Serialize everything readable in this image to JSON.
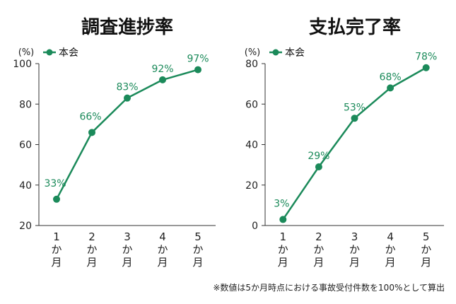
{
  "chart_data": [
    {
      "type": "line",
      "title": "調査進捗率",
      "unit_label": "(%)",
      "series": [
        {
          "name": "本会",
          "values": [
            33,
            66,
            83,
            92,
            97
          ],
          "labels": [
            "33%",
            "66%",
            "83%",
            "92%",
            "97%"
          ]
        }
      ],
      "categories": [
        [
          "1",
          "か",
          "月"
        ],
        [
          "2",
          "か",
          "月"
        ],
        [
          "3",
          "か",
          "月"
        ],
        [
          "4",
          "か",
          "月"
        ],
        [
          "5",
          "か",
          "月"
        ]
      ],
      "ylim": [
        20,
        100
      ],
      "yticks": [
        20,
        40,
        60,
        80,
        100
      ],
      "grid": false,
      "legend": "top-left",
      "color": "#1b8a5a"
    },
    {
      "type": "line",
      "title": "支払完了率",
      "unit_label": "(%)",
      "series": [
        {
          "name": "本会",
          "values": [
            3,
            29,
            53,
            68,
            78
          ],
          "labels": [
            "3%",
            "29%",
            "53%",
            "68%",
            "78%"
          ]
        }
      ],
      "categories": [
        [
          "1",
          "か",
          "月"
        ],
        [
          "2",
          "か",
          "月"
        ],
        [
          "3",
          "か",
          "月"
        ],
        [
          "4",
          "か",
          "月"
        ],
        [
          "5",
          "か",
          "月"
        ]
      ],
      "ylim": [
        0,
        80
      ],
      "yticks": [
        0,
        20,
        40,
        60,
        80
      ],
      "grid": false,
      "legend": "top-left",
      "color": "#1b8a5a"
    }
  ],
  "footnote": "※数値は5か月時点における事故受付件数を100%として算出"
}
